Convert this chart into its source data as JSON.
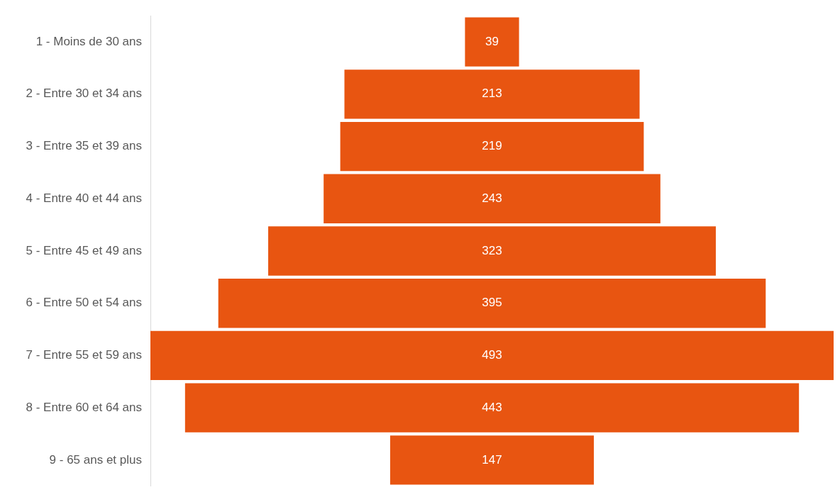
{
  "chart_data": {
    "type": "other",
    "categories": [
      "1 - Moins de 30 ans",
      "2 - Entre 30 et 34 ans",
      "3 - Entre 35 et 39 ans",
      "4 - Entre 40 et 44 ans",
      "5 - Entre 45 et 49 ans",
      "6 - Entre 50 et 54 ans",
      "7 - Entre 55 et 59 ans",
      "8 - Entre 60 et 64 ans",
      "9 - 65 ans et plus"
    ],
    "values": [
      39,
      213,
      219,
      243,
      323,
      395,
      493,
      443,
      147
    ],
    "color": "#e85511",
    "data_labels": true
  }
}
